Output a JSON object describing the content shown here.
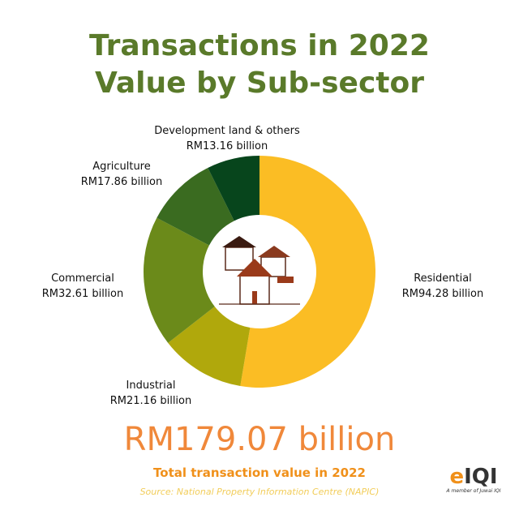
{
  "title_line1": "Transactions in 2022",
  "title_line2": "Value by Sub-sector",
  "chart_data": {
    "type": "pie",
    "style": "donut",
    "unit": "RM billion",
    "categories": [
      "Residential",
      "Industrial",
      "Commercial",
      "Agriculture",
      "Development land & others"
    ],
    "values": [
      94.28,
      21.16,
      32.61,
      17.86,
      13.16
    ],
    "value_labels": [
      "RM94.28 billion",
      "RM21.16 billion",
      "RM32.61 billion",
      "RM17.86 billion",
      "RM13.16 billion"
    ],
    "colors": [
      "#fbbd24",
      "#b0a80c",
      "#6b8a1a",
      "#3a6b20",
      "#07451c"
    ],
    "start": "top",
    "direction": "clockwise",
    "center_icon": "houses-illustration"
  },
  "total": {
    "value": "RM179.07 billion",
    "label": "Total transaction value in 2022"
  },
  "source": "Source: National Property Information Centre (NAPIC)",
  "logo": {
    "text": "IQI",
    "tagline": "A member of Juwai IQI"
  }
}
